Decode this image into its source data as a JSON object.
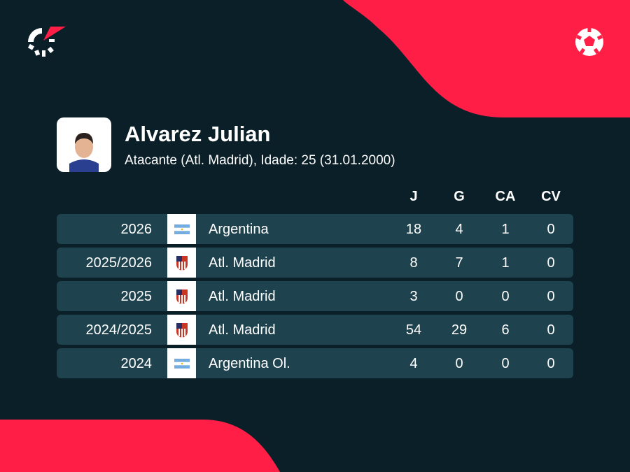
{
  "colors": {
    "background": "#0b1f29",
    "accent": "#ff1e46",
    "row": "#1f434e"
  },
  "icons": {
    "logo": "flashscore-logo",
    "sport": "football-icon"
  },
  "player": {
    "name": "Alvarez Julian",
    "subtitle": "Atacante (Atl. Madrid), Idade: 25 (31.01.2000)"
  },
  "columns": [
    "J",
    "G",
    "CA",
    "CV"
  ],
  "rows": [
    {
      "season": "2026",
      "team": "Argentina",
      "flag": "argentina",
      "stats": [
        "18",
        "4",
        "1",
        "0"
      ]
    },
    {
      "season": "2025/2026",
      "team": "Atl. Madrid",
      "flag": "atletico",
      "stats": [
        "8",
        "7",
        "1",
        "0"
      ]
    },
    {
      "season": "2025",
      "team": "Atl. Madrid",
      "flag": "atletico",
      "stats": [
        "3",
        "0",
        "0",
        "0"
      ]
    },
    {
      "season": "2024/2025",
      "team": "Atl. Madrid",
      "flag": "atletico",
      "stats": [
        "54",
        "29",
        "6",
        "0"
      ]
    },
    {
      "season": "2024",
      "team": "Argentina Ol.",
      "flag": "argentina",
      "stats": [
        "4",
        "0",
        "0",
        "0"
      ]
    }
  ]
}
